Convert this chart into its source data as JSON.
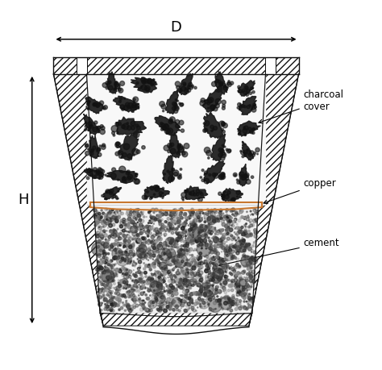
{
  "bg_color": "#ffffff",
  "charcoal_color": "#2a2a2a",
  "cement_bg_color": "#f0f0f0",
  "charcoal_bg_color": "#f8f8f8",
  "copper_line_color": "#c87830",
  "hatch_color": "#888888",
  "title_D": "D",
  "label_H": "H",
  "label_charcoal": "charcoal\ncover",
  "label_copper": "copper",
  "label_cement": "cement",
  "line_color": "#111111"
}
